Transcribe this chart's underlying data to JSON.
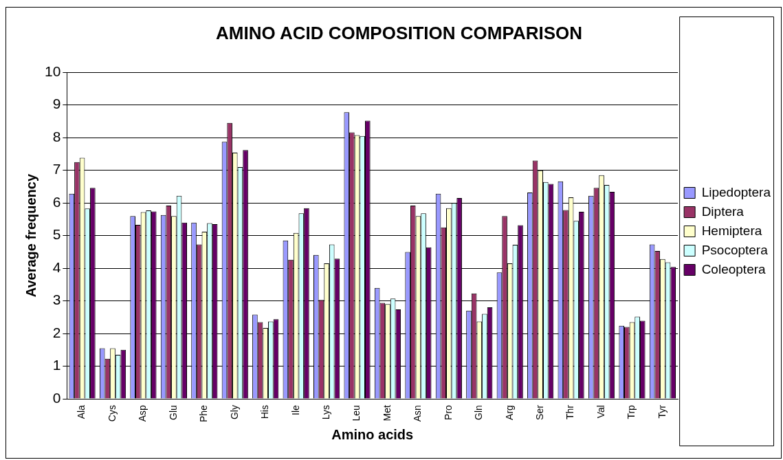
{
  "chart_data": {
    "type": "bar",
    "title": "AMINO ACID COMPOSITION COMPARISON",
    "xlabel": "Amino acids",
    "ylabel": "Average frequency",
    "categories": [
      "Ala",
      "Cys",
      "Asp",
      "Glu",
      "Phe",
      "Gly",
      "His",
      "Ile",
      "Lys",
      "Leu",
      "Met",
      "Asn",
      "Pro",
      "Gln",
      "Arg",
      "Ser",
      "Thr",
      "Val",
      "Trp",
      "Tyr"
    ],
    "series": [
      {
        "name": "Lipedoptera",
        "color": "#9999ff",
        "values": [
          6.28,
          1.55,
          5.6,
          5.63,
          5.4,
          7.87,
          2.58,
          4.85,
          4.41,
          8.78,
          3.4,
          4.5,
          6.28,
          2.7,
          3.87,
          6.32,
          6.66,
          6.22,
          2.24,
          4.73
        ]
      },
      {
        "name": "Diptera",
        "color": "#993366",
        "values": [
          7.25,
          1.23,
          5.33,
          5.92,
          4.73,
          8.45,
          2.35,
          4.26,
          3.03,
          8.16,
          2.94,
          5.92,
          5.25,
          3.23,
          5.6,
          7.3,
          5.78,
          6.46,
          2.2,
          4.53
        ]
      },
      {
        "name": "Hemiptera",
        "color": "#ffffcc",
        "values": [
          7.38,
          1.55,
          5.72,
          5.6,
          5.12,
          7.54,
          2.17,
          5.08,
          4.15,
          8.08,
          2.9,
          5.6,
          5.84,
          2.37,
          4.15,
          7.0,
          6.17,
          6.85,
          2.35,
          4.28
        ]
      },
      {
        "name": "Psocoptera",
        "color": "#ccffff",
        "values": [
          5.83,
          1.35,
          5.77,
          6.22,
          5.38,
          7.1,
          2.37,
          5.68,
          4.73,
          8.05,
          3.07,
          5.68,
          6.0,
          2.6,
          4.72,
          6.64,
          5.45,
          6.55,
          2.52,
          4.18
        ]
      },
      {
        "name": "Coleoptera",
        "color": "#660066",
        "values": [
          6.46,
          1.5,
          5.74,
          5.4,
          5.35,
          7.62,
          2.44,
          5.84,
          4.29,
          8.52,
          2.74,
          4.64,
          6.15,
          2.8,
          5.32,
          6.58,
          5.73,
          6.34,
          2.39,
          4.04
        ]
      }
    ],
    "ylim": [
      0,
      10
    ],
    "yticks": [
      0,
      1,
      2,
      3,
      4,
      5,
      6,
      7,
      8,
      9,
      10
    ],
    "grid": "y",
    "legend": "right"
  }
}
